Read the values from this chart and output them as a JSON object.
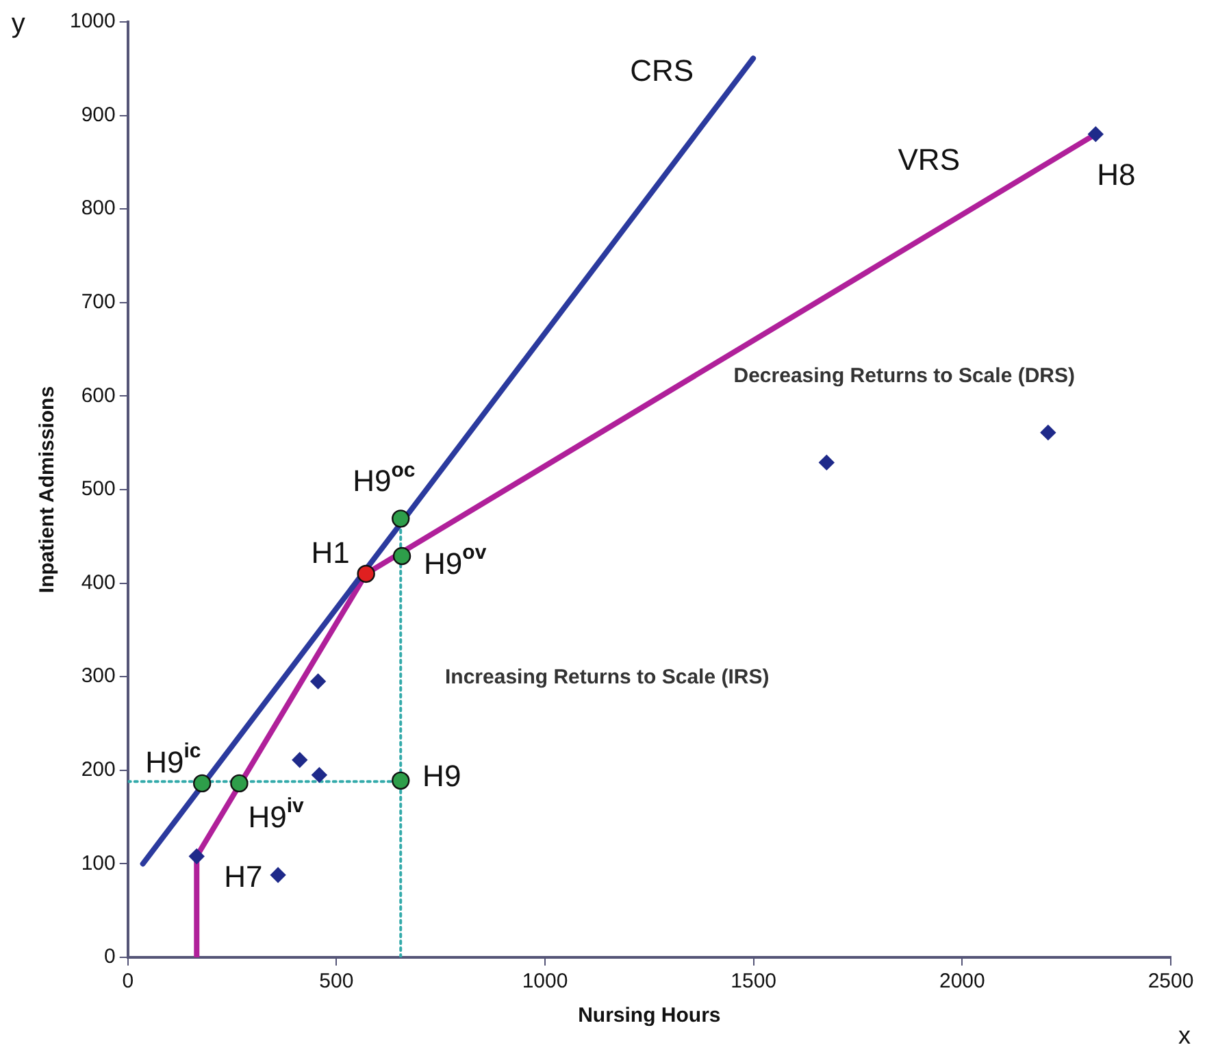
{
  "chart_data": {
    "type": "scatter",
    "xlabel": "Nursing Hours",
    "ylabel": "Inpatient Admissions",
    "xlim": [
      0,
      2500
    ],
    "xticks": [
      0,
      500,
      1000,
      1500,
      2000,
      2500
    ],
    "ylim": [
      0,
      1000
    ],
    "yticks": [
      0,
      100,
      200,
      300,
      400,
      500,
      600,
      700,
      800,
      900,
      1000
    ],
    "grid": false,
    "legend": false,
    "series": [
      {
        "type": "line",
        "color": "#33aaaa",
        "line_style": "dotted",
        "marker": "none",
        "x": [
          0,
          654
        ],
        "values": [
          188,
          188
        ]
      },
      {
        "type": "line",
        "color": "#33aaaa",
        "line_style": "dotted",
        "marker": "none",
        "x": [
          654,
          654
        ],
        "values": [
          0,
          469
        ]
      },
      {
        "type": "line",
        "color": "#2b3a9e",
        "line_style": "solid",
        "marker": "none",
        "x": [
          36,
          1499
        ],
        "values": [
          100,
          961
        ]
      },
      {
        "type": "line",
        "color": "#b0209a",
        "line_style": "solid",
        "marker": "none",
        "x": [
          165,
          165,
          571,
          2320
        ],
        "values": [
          0,
          108,
          410,
          880
        ]
      },
      {
        "color": "#1f2a8a",
        "marker": "diamond",
        "x": [
          165,
          360,
          412,
          459,
          456,
          1675,
          2206,
          2320
        ],
        "values": [
          108,
          88,
          211,
          195,
          295,
          529,
          561,
          880
        ]
      },
      {
        "color": "#2e9e4a",
        "marker": "circle",
        "x": [
          654,
          657,
          654,
          178,
          267
        ],
        "values": [
          469,
          429,
          189,
          186,
          186
        ]
      },
      {
        "color": "#e02020",
        "marker": "circle",
        "x": [
          571
        ],
        "values": [
          410
        ]
      }
    ],
    "annotations": [
      {
        "text": "H8",
        "x": 2320,
        "y": 880
      },
      {
        "text": "H9$^{oc}$",
        "x": 654,
        "y": 469
      },
      {
        "text": "H1",
        "x": 571,
        "y": 410
      },
      {
        "text": "H9$^{ov}$",
        "x": 657,
        "y": 429
      },
      {
        "text": "H9$^{ic}$",
        "x": 178,
        "y": 186
      },
      {
        "text": "H9$^{iv}$",
        "x": 267,
        "y": 186
      },
      {
        "text": "H9",
        "x": 654,
        "y": 189
      },
      {
        "text": "H7",
        "x": 165,
        "y": 108
      },
      "CRS",
      "VRS",
      "Decreasing Returns to Scale (DRS)",
      "Increasing Returns to Scale (IRS)",
      "y",
      "x"
    ]
  }
}
